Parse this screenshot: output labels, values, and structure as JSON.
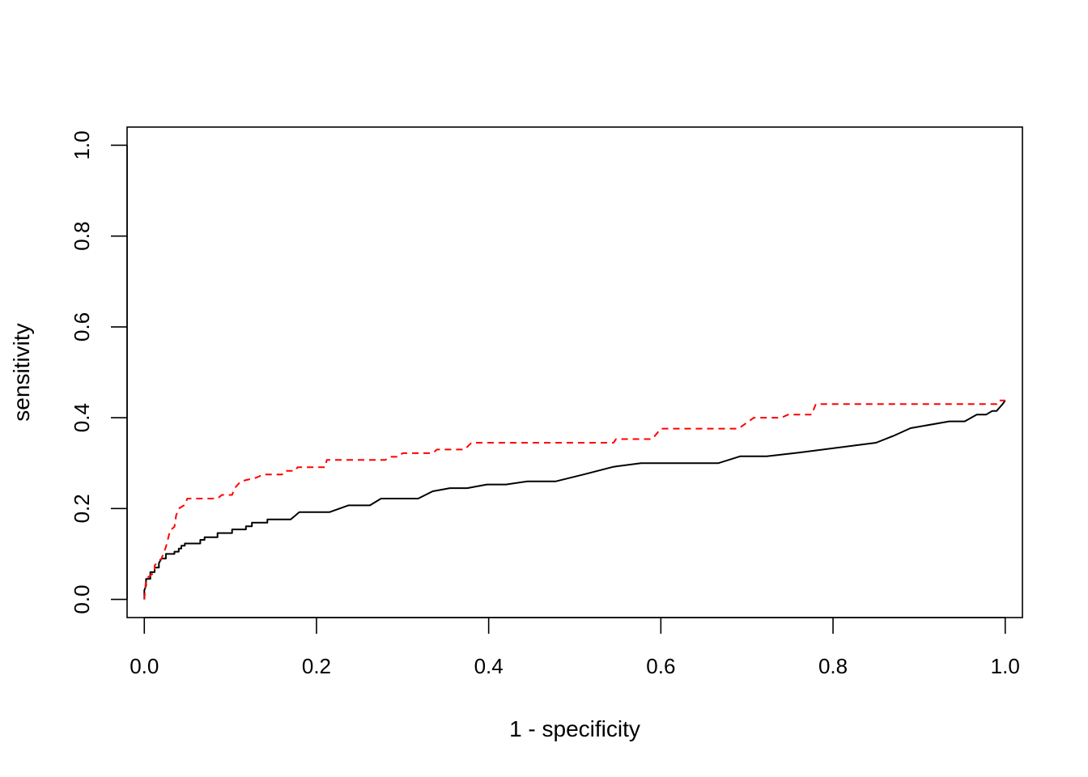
{
  "chart_data": {
    "type": "line",
    "title": "",
    "xlabel": "1 - specificity",
    "ylabel": "sensitivity",
    "xlim": [
      -0.02,
      1.02
    ],
    "ylim": [
      -0.04,
      1.04
    ],
    "xticks": [
      "0.0",
      "0.2",
      "0.4",
      "0.6",
      "0.8",
      "1.0"
    ],
    "yticks": [
      "0.0",
      "0.2",
      "0.4",
      "0.6",
      "0.8",
      "1.0"
    ],
    "grid": false,
    "legend": "none",
    "series": [
      {
        "color": "#000000",
        "style": "solid",
        "points": [
          [
            0.0,
            0.0
          ],
          [
            0.0,
            0.02
          ],
          [
            0.002,
            0.03
          ],
          [
            0.002,
            0.045
          ],
          [
            0.007,
            0.045
          ],
          [
            0.007,
            0.06
          ],
          [
            0.012,
            0.06
          ],
          [
            0.012,
            0.07
          ],
          [
            0.017,
            0.07
          ],
          [
            0.017,
            0.08
          ],
          [
            0.02,
            0.09
          ],
          [
            0.025,
            0.09
          ],
          [
            0.025,
            0.1
          ],
          [
            0.035,
            0.1
          ],
          [
            0.035,
            0.105
          ],
          [
            0.04,
            0.105
          ],
          [
            0.04,
            0.112
          ],
          [
            0.043,
            0.112
          ],
          [
            0.043,
            0.118
          ],
          [
            0.047,
            0.118
          ],
          [
            0.047,
            0.123
          ],
          [
            0.065,
            0.123
          ],
          [
            0.065,
            0.131
          ],
          [
            0.07,
            0.131
          ],
          [
            0.07,
            0.137
          ],
          [
            0.085,
            0.137
          ],
          [
            0.085,
            0.146
          ],
          [
            0.102,
            0.146
          ],
          [
            0.102,
            0.154
          ],
          [
            0.118,
            0.154
          ],
          [
            0.118,
            0.161
          ],
          [
            0.125,
            0.161
          ],
          [
            0.125,
            0.169
          ],
          [
            0.143,
            0.169
          ],
          [
            0.143,
            0.176
          ],
          [
            0.17,
            0.176
          ],
          [
            0.18,
            0.192
          ],
          [
            0.215,
            0.192
          ],
          [
            0.237,
            0.207
          ],
          [
            0.262,
            0.207
          ],
          [
            0.275,
            0.222
          ],
          [
            0.318,
            0.222
          ],
          [
            0.335,
            0.238
          ],
          [
            0.355,
            0.245
          ],
          [
            0.375,
            0.245
          ],
          [
            0.398,
            0.253
          ],
          [
            0.42,
            0.253
          ],
          [
            0.445,
            0.26
          ],
          [
            0.478,
            0.26
          ],
          [
            0.51,
            0.275
          ],
          [
            0.545,
            0.292
          ],
          [
            0.577,
            0.3
          ],
          [
            0.667,
            0.3
          ],
          [
            0.692,
            0.315
          ],
          [
            0.723,
            0.315
          ],
          [
            0.76,
            0.323
          ],
          [
            0.85,
            0.345
          ],
          [
            0.87,
            0.36
          ],
          [
            0.89,
            0.377
          ],
          [
            0.935,
            0.392
          ],
          [
            0.953,
            0.392
          ],
          [
            0.967,
            0.407
          ],
          [
            0.978,
            0.407
          ],
          [
            0.985,
            0.415
          ],
          [
            0.99,
            0.415
          ],
          [
            0.997,
            0.43
          ],
          [
            1.0,
            0.438
          ]
        ]
      },
      {
        "color": "#ff0000",
        "style": "dashed",
        "points": [
          [
            0.0,
            0.0
          ],
          [
            0.002,
            0.045
          ],
          [
            0.012,
            0.06
          ],
          [
            0.012,
            0.075
          ],
          [
            0.02,
            0.09
          ],
          [
            0.025,
            0.115
          ],
          [
            0.03,
            0.152
          ],
          [
            0.035,
            0.16
          ],
          [
            0.037,
            0.185
          ],
          [
            0.04,
            0.2
          ],
          [
            0.047,
            0.208
          ],
          [
            0.05,
            0.222
          ],
          [
            0.085,
            0.222
          ],
          [
            0.09,
            0.23
          ],
          [
            0.102,
            0.23
          ],
          [
            0.105,
            0.245
          ],
          [
            0.112,
            0.26
          ],
          [
            0.13,
            0.268
          ],
          [
            0.138,
            0.275
          ],
          [
            0.16,
            0.275
          ],
          [
            0.163,
            0.283
          ],
          [
            0.175,
            0.283
          ],
          [
            0.178,
            0.291
          ],
          [
            0.21,
            0.291
          ],
          [
            0.212,
            0.307
          ],
          [
            0.28,
            0.307
          ],
          [
            0.285,
            0.314
          ],
          [
            0.295,
            0.314
          ],
          [
            0.3,
            0.322
          ],
          [
            0.335,
            0.322
          ],
          [
            0.34,
            0.33
          ],
          [
            0.372,
            0.33
          ],
          [
            0.38,
            0.345
          ],
          [
            0.545,
            0.345
          ],
          [
            0.548,
            0.353
          ],
          [
            0.59,
            0.353
          ],
          [
            0.6,
            0.376
          ],
          [
            0.69,
            0.376
          ],
          [
            0.708,
            0.4
          ],
          [
            0.74,
            0.4
          ],
          [
            0.748,
            0.407
          ],
          [
            0.775,
            0.407
          ],
          [
            0.78,
            0.43
          ],
          [
            0.99,
            0.43
          ],
          [
            0.992,
            0.438
          ],
          [
            1.0,
            0.438
          ]
        ]
      }
    ]
  }
}
